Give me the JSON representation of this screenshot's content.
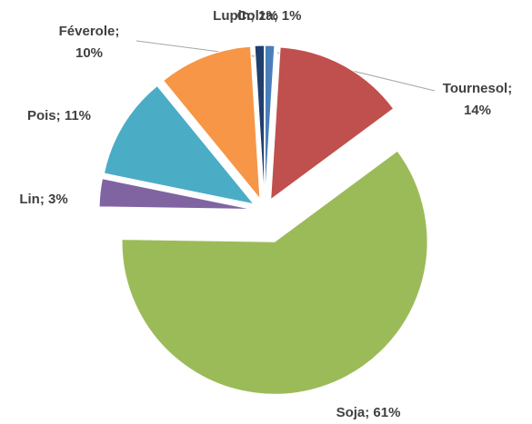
{
  "chart_data": {
    "type": "pie",
    "categories": [
      "Colza",
      "Tournesol",
      "Soja",
      "Lin",
      "Pois",
      "Féverole",
      "Lupin"
    ],
    "values": [
      1,
      14,
      61,
      3,
      11,
      10,
      1
    ],
    "value_labels": [
      "Colza; 1%",
      "Tournesol;\n14%",
      "Soja; 61%",
      "Lin; 3%",
      "Pois; 11%",
      "Féverole;\n10%",
      "Lupin; 1%"
    ],
    "colors": [
      "#4a7ebb",
      "#c0504d",
      "#9bbb59",
      "#8064a2",
      "#4bacc6",
      "#f79646",
      "#1f3f6e"
    ]
  }
}
